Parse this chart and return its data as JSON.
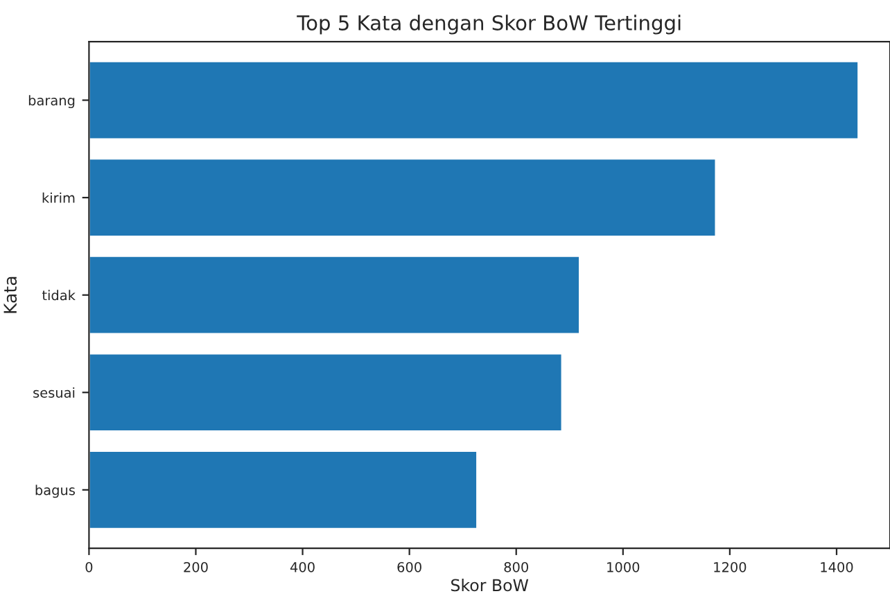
{
  "chart_data": {
    "type": "bar",
    "orientation": "horizontal",
    "title": "Top 5 Kata dengan Skor BoW Tertinggi",
    "xlabel": "Skor BoW",
    "ylabel": "Kata",
    "categories": [
      "barang",
      "kirim",
      "tidak",
      "sesuai",
      "bagus"
    ],
    "values": [
      1441,
      1174,
      919,
      886,
      727
    ],
    "color": "#1f77b4",
    "xlim": [
      0,
      1500
    ],
    "xticks": [
      0,
      200,
      400,
      600,
      800,
      1000,
      1200,
      1400
    ],
    "grid": false
  }
}
